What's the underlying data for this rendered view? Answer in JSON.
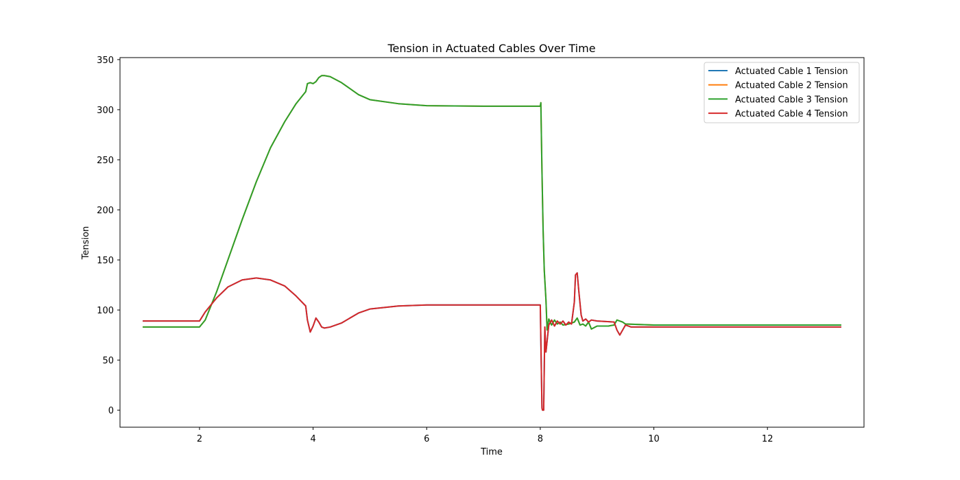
{
  "chart_data": {
    "type": "line",
    "title": "Tension in Actuated Cables Over Time",
    "xlabel": "Time",
    "ylabel": "Tension",
    "xlim": [
      0.6,
      13.7
    ],
    "ylim": [
      -17,
      352
    ],
    "xticks": [
      2,
      4,
      6,
      8,
      10,
      12
    ],
    "yticks": [
      0,
      50,
      100,
      150,
      200,
      250,
      300,
      350
    ],
    "grid": false,
    "legend_position": "top-right",
    "series": [
      {
        "name": "Actuated Cable 1 Tension",
        "color": "#1f77b4",
        "x": [
          1.0,
          2.0,
          2.1,
          2.3,
          2.5,
          2.75,
          3.0,
          3.25,
          3.5,
          3.7,
          3.87,
          3.9,
          3.95,
          4.0,
          4.05,
          4.1,
          4.15,
          4.2,
          4.3,
          4.5,
          4.8,
          5.0,
          5.5,
          6.0,
          7.0,
          8.0,
          8.01,
          8.03,
          8.04,
          8.06,
          8.08,
          8.1,
          8.15,
          8.2,
          8.25,
          8.3,
          8.35,
          8.4,
          8.45,
          8.5,
          8.55,
          8.6,
          8.62,
          8.65,
          8.68,
          8.72,
          8.75,
          8.8,
          8.85,
          8.9,
          9.0,
          9.3,
          9.35,
          9.4,
          9.45,
          9.5,
          9.55,
          9.6,
          9.7,
          10.0,
          12.0,
          13.3
        ],
        "y": [
          89,
          89,
          98,
          112,
          123,
          130,
          132,
          130,
          124,
          114,
          104,
          90,
          78,
          84,
          92,
          88,
          83,
          82,
          83,
          87,
          97,
          101,
          104,
          105,
          105,
          105,
          70,
          2,
          0,
          0,
          83,
          58,
          85,
          90,
          84,
          89,
          86,
          89,
          85,
          88,
          86,
          108,
          135,
          137,
          118,
          95,
          89,
          91,
          88,
          90,
          89,
          88,
          80,
          75,
          80,
          85,
          84,
          83,
          83,
          83,
          83,
          83
        ]
      },
      {
        "name": "Actuated Cable 2 Tension",
        "color": "#ff7f0e",
        "x": [
          1.0,
          2.0,
          2.1,
          2.3,
          2.5,
          2.75,
          3.0,
          3.25,
          3.5,
          3.7,
          3.87,
          3.9,
          3.95,
          4.0,
          4.05,
          4.1,
          4.15,
          4.2,
          4.3,
          4.5,
          4.8,
          5.0,
          5.5,
          6.0,
          7.0,
          8.0,
          8.01,
          8.03,
          8.05,
          8.07,
          8.1,
          8.12,
          8.15,
          8.2,
          8.25,
          8.3,
          8.35,
          8.4,
          8.5,
          8.6,
          8.65,
          8.7,
          8.75,
          8.8,
          8.85,
          8.9,
          9.0,
          9.2,
          9.3,
          9.35,
          9.4,
          9.45,
          9.5,
          10.0,
          12.0,
          13.3
        ],
        "y": [
          83,
          83,
          90,
          118,
          150,
          190,
          228,
          262,
          288,
          306,
          318,
          326,
          327,
          326,
          328,
          332,
          334,
          334,
          333,
          327,
          315,
          310,
          306,
          304,
          303.5,
          303.5,
          307,
          238,
          180,
          140,
          110,
          80,
          91,
          85,
          90,
          86,
          88,
          85,
          86,
          88,
          92,
          85,
          86,
          84,
          88,
          81,
          84,
          84,
          85,
          90,
          89,
          88,
          86,
          85,
          85,
          85
        ]
      },
      {
        "name": "Actuated Cable 3 Tension",
        "color": "#2ca02c",
        "x": [
          1.0,
          2.0,
          2.1,
          2.3,
          2.5,
          2.75,
          3.0,
          3.25,
          3.5,
          3.7,
          3.87,
          3.9,
          3.95,
          4.0,
          4.05,
          4.1,
          4.15,
          4.2,
          4.3,
          4.5,
          4.8,
          5.0,
          5.5,
          6.0,
          7.0,
          8.0,
          8.01,
          8.03,
          8.05,
          8.07,
          8.1,
          8.12,
          8.15,
          8.2,
          8.25,
          8.3,
          8.35,
          8.4,
          8.5,
          8.6,
          8.65,
          8.7,
          8.75,
          8.8,
          8.85,
          8.9,
          9.0,
          9.2,
          9.3,
          9.35,
          9.4,
          9.45,
          9.5,
          10.0,
          12.0,
          13.3
        ],
        "y": [
          83,
          83,
          90,
          118,
          150,
          190,
          228,
          262,
          288,
          306,
          318,
          326,
          327,
          326,
          328,
          332,
          334,
          334,
          333,
          327,
          315,
          310,
          306,
          304,
          303.5,
          303.5,
          307,
          238,
          180,
          140,
          110,
          80,
          91,
          85,
          90,
          86,
          88,
          85,
          86,
          88,
          92,
          85,
          86,
          84,
          88,
          81,
          84,
          84,
          85,
          90,
          89,
          88,
          86,
          85,
          85,
          85
        ]
      },
      {
        "name": "Actuated Cable 4 Tension",
        "color": "#d62728",
        "x": [
          1.0,
          2.0,
          2.1,
          2.3,
          2.5,
          2.75,
          3.0,
          3.25,
          3.5,
          3.7,
          3.87,
          3.9,
          3.95,
          4.0,
          4.05,
          4.1,
          4.15,
          4.2,
          4.3,
          4.5,
          4.8,
          5.0,
          5.5,
          6.0,
          7.0,
          8.0,
          8.01,
          8.03,
          8.04,
          8.06,
          8.08,
          8.1,
          8.15,
          8.2,
          8.25,
          8.3,
          8.35,
          8.4,
          8.45,
          8.5,
          8.55,
          8.6,
          8.62,
          8.65,
          8.68,
          8.72,
          8.75,
          8.8,
          8.85,
          8.9,
          9.0,
          9.3,
          9.35,
          9.4,
          9.45,
          9.5,
          9.55,
          9.6,
          9.7,
          10.0,
          12.0,
          13.3
        ],
        "y": [
          89,
          89,
          98,
          112,
          123,
          130,
          132,
          130,
          124,
          114,
          104,
          90,
          78,
          84,
          92,
          88,
          83,
          82,
          83,
          87,
          97,
          101,
          104,
          105,
          105,
          105,
          70,
          2,
          0,
          0,
          83,
          58,
          85,
          90,
          84,
          89,
          86,
          89,
          85,
          88,
          86,
          108,
          135,
          137,
          118,
          95,
          89,
          91,
          88,
          90,
          89,
          88,
          80,
          75,
          80,
          85,
          84,
          83,
          83,
          83,
          83,
          83
        ]
      }
    ]
  }
}
